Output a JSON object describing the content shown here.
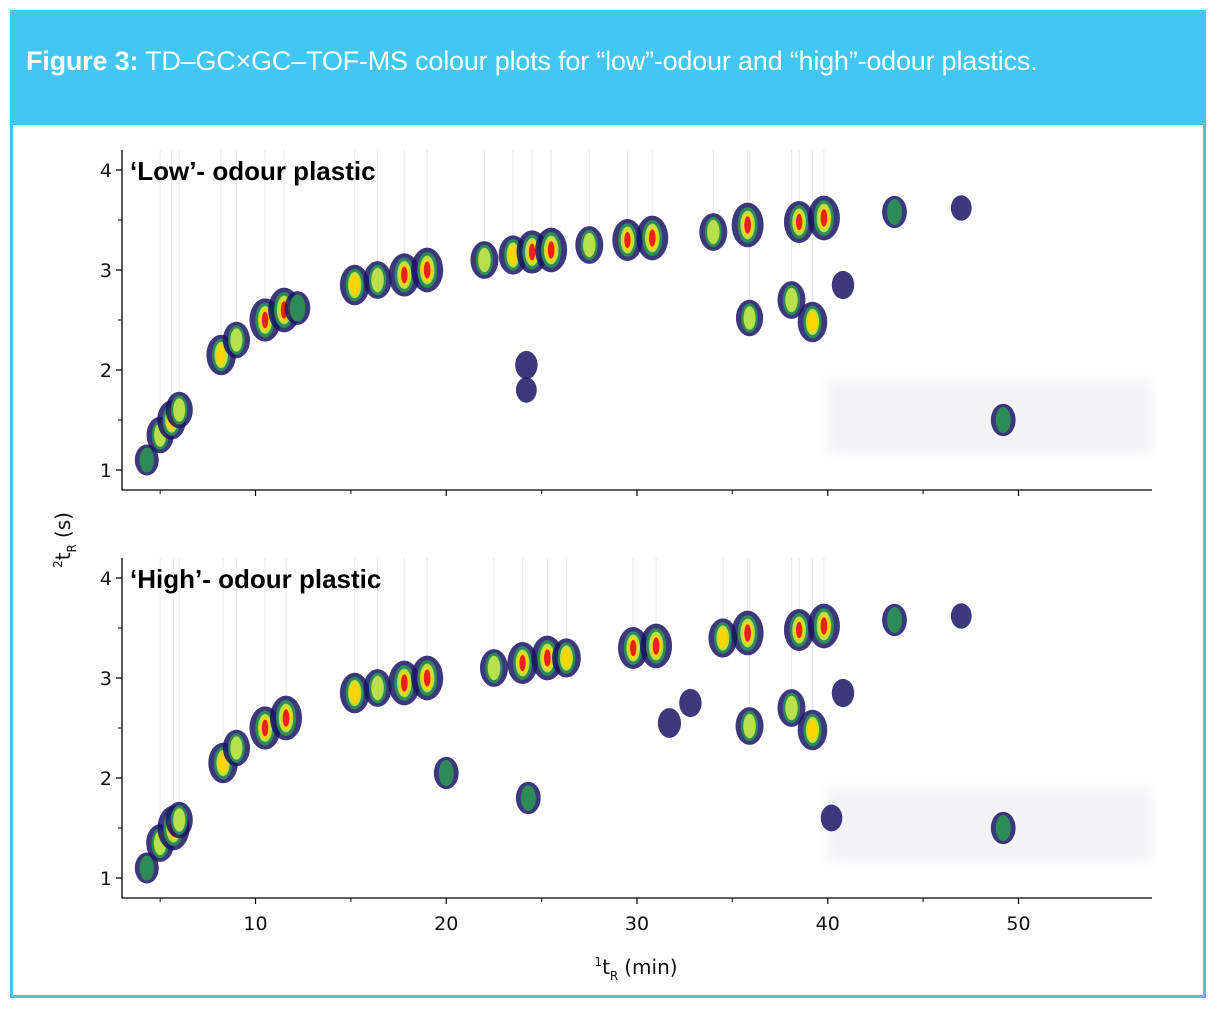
{
  "figure": {
    "label": "Figure 3:",
    "caption": "TD–GC×GC–TOF-MS colour plots for “low”-odour and “high”-odour plastics.",
    "accent_color": "#43c6f1"
  },
  "axes": {
    "y_title_sup": "2",
    "y_title_main": "t",
    "y_title_sub": "R",
    "y_title_unit": "(s)",
    "x_title_sup": "1",
    "x_title_main": "t",
    "x_title_sub": "R",
    "x_title_unit": "(min)"
  },
  "chart_data": [
    {
      "type": "heatmap",
      "title": "‘Low’- odour plastic",
      "xlabel": "1tR (min)",
      "ylabel": "2tR (s)",
      "xlim": [
        3,
        57
      ],
      "ylim": [
        0.8,
        4.1
      ],
      "x_ticks": [
        10,
        20,
        30,
        40,
        50
      ],
      "y_ticks": [
        1,
        2,
        3,
        4
      ],
      "x_tick_labels": [
        "10",
        "20",
        "30",
        "40",
        "50"
      ],
      "y_tick_labels": [
        "1",
        "2",
        "3",
        "4"
      ],
      "show_x_tick_labels": false,
      "colormap": [
        "#1b1464",
        "#2e8b57",
        "#b8e04a",
        "#ffd400",
        "#e8221b"
      ],
      "peaks": [
        {
          "x": 4.3,
          "y": 1.1,
          "intensity": 0.5
        },
        {
          "x": 5.0,
          "y": 1.35,
          "intensity": 0.7
        },
        {
          "x": 5.6,
          "y": 1.5,
          "intensity": 0.8
        },
        {
          "x": 6.0,
          "y": 1.6,
          "intensity": 0.7
        },
        {
          "x": 8.2,
          "y": 2.15,
          "intensity": 0.85
        },
        {
          "x": 9.0,
          "y": 2.3,
          "intensity": 0.7
        },
        {
          "x": 10.5,
          "y": 2.5,
          "intensity": 0.95
        },
        {
          "x": 11.5,
          "y": 2.6,
          "intensity": 1.0
        },
        {
          "x": 12.2,
          "y": 2.62,
          "intensity": 0.6
        },
        {
          "x": 15.2,
          "y": 2.85,
          "intensity": 0.85
        },
        {
          "x": 16.4,
          "y": 2.9,
          "intensity": 0.75
        },
        {
          "x": 17.8,
          "y": 2.95,
          "intensity": 0.95
        },
        {
          "x": 19.0,
          "y": 3.0,
          "intensity": 1.0
        },
        {
          "x": 22.0,
          "y": 3.1,
          "intensity": 0.75
        },
        {
          "x": 23.5,
          "y": 3.15,
          "intensity": 0.8
        },
        {
          "x": 24.5,
          "y": 3.18,
          "intensity": 0.95
        },
        {
          "x": 25.5,
          "y": 3.2,
          "intensity": 1.0
        },
        {
          "x": 27.5,
          "y": 3.25,
          "intensity": 0.75
        },
        {
          "x": 29.5,
          "y": 3.3,
          "intensity": 0.9
        },
        {
          "x": 30.8,
          "y": 3.32,
          "intensity": 1.0
        },
        {
          "x": 34.0,
          "y": 3.38,
          "intensity": 0.75
        },
        {
          "x": 35.8,
          "y": 3.45,
          "intensity": 1.0
        },
        {
          "x": 38.5,
          "y": 3.48,
          "intensity": 0.9
        },
        {
          "x": 39.8,
          "y": 3.52,
          "intensity": 1.0
        },
        {
          "x": 43.5,
          "y": 3.58,
          "intensity": 0.55
        },
        {
          "x": 47.0,
          "y": 3.62,
          "intensity": 0.3
        },
        {
          "x": 24.2,
          "y": 2.05,
          "intensity": 0.4
        },
        {
          "x": 24.2,
          "y": 1.8,
          "intensity": 0.3
        },
        {
          "x": 35.9,
          "y": 2.52,
          "intensity": 0.7
        },
        {
          "x": 38.1,
          "y": 2.7,
          "intensity": 0.75
        },
        {
          "x": 39.2,
          "y": 2.48,
          "intensity": 0.85
        },
        {
          "x": 40.8,
          "y": 2.85,
          "intensity": 0.4
        },
        {
          "x": 49.2,
          "y": 1.5,
          "intensity": 0.55
        }
      ]
    },
    {
      "type": "heatmap",
      "title": "‘High’- odour plastic",
      "xlabel": "1tR (min)",
      "ylabel": "2tR (s)",
      "xlim": [
        3,
        57
      ],
      "ylim": [
        0.8,
        4.1
      ],
      "x_ticks": [
        10,
        20,
        30,
        40,
        50
      ],
      "y_ticks": [
        1,
        2,
        3,
        4
      ],
      "x_tick_labels": [
        "10",
        "20",
        "30",
        "40",
        "50"
      ],
      "y_tick_labels": [
        "1",
        "2",
        "3",
        "4"
      ],
      "show_x_tick_labels": true,
      "colormap": [
        "#1b1464",
        "#2e8b57",
        "#b8e04a",
        "#ffd400",
        "#e8221b"
      ],
      "peaks": [
        {
          "x": 4.3,
          "y": 1.1,
          "intensity": 0.5
        },
        {
          "x": 5.0,
          "y": 1.35,
          "intensity": 0.75
        },
        {
          "x": 5.7,
          "y": 1.5,
          "intensity": 1.0
        },
        {
          "x": 6.0,
          "y": 1.58,
          "intensity": 0.7
        },
        {
          "x": 8.3,
          "y": 2.15,
          "intensity": 0.85
        },
        {
          "x": 9.0,
          "y": 2.3,
          "intensity": 0.7
        },
        {
          "x": 10.5,
          "y": 2.5,
          "intensity": 0.95
        },
        {
          "x": 11.6,
          "y": 2.6,
          "intensity": 1.0
        },
        {
          "x": 15.2,
          "y": 2.85,
          "intensity": 0.85
        },
        {
          "x": 16.4,
          "y": 2.9,
          "intensity": 0.75
        },
        {
          "x": 17.8,
          "y": 2.95,
          "intensity": 1.0
        },
        {
          "x": 19.0,
          "y": 3.0,
          "intensity": 1.0
        },
        {
          "x": 20.0,
          "y": 2.05,
          "intensity": 0.55
        },
        {
          "x": 22.5,
          "y": 3.1,
          "intensity": 0.75
        },
        {
          "x": 24.0,
          "y": 3.15,
          "intensity": 0.9
        },
        {
          "x": 25.3,
          "y": 3.2,
          "intensity": 1.0
        },
        {
          "x": 26.3,
          "y": 3.2,
          "intensity": 0.8
        },
        {
          "x": 29.8,
          "y": 3.3,
          "intensity": 0.9
        },
        {
          "x": 31.0,
          "y": 3.32,
          "intensity": 1.0
        },
        {
          "x": 34.5,
          "y": 3.4,
          "intensity": 0.8
        },
        {
          "x": 35.8,
          "y": 3.45,
          "intensity": 1.0
        },
        {
          "x": 38.5,
          "y": 3.48,
          "intensity": 0.9
        },
        {
          "x": 39.8,
          "y": 3.52,
          "intensity": 1.0
        },
        {
          "x": 43.5,
          "y": 3.58,
          "intensity": 0.55
        },
        {
          "x": 47.0,
          "y": 3.62,
          "intensity": 0.3
        },
        {
          "x": 24.3,
          "y": 1.8,
          "intensity": 0.55
        },
        {
          "x": 31.7,
          "y": 2.55,
          "intensity": 0.45
        },
        {
          "x": 32.8,
          "y": 2.75,
          "intensity": 0.4
        },
        {
          "x": 35.9,
          "y": 2.52,
          "intensity": 0.75
        },
        {
          "x": 38.1,
          "y": 2.7,
          "intensity": 0.75
        },
        {
          "x": 39.2,
          "y": 2.48,
          "intensity": 0.85
        },
        {
          "x": 40.8,
          "y": 2.85,
          "intensity": 0.4
        },
        {
          "x": 40.2,
          "y": 1.6,
          "intensity": 0.35
        },
        {
          "x": 49.2,
          "y": 1.5,
          "intensity": 0.55
        }
      ]
    }
  ]
}
